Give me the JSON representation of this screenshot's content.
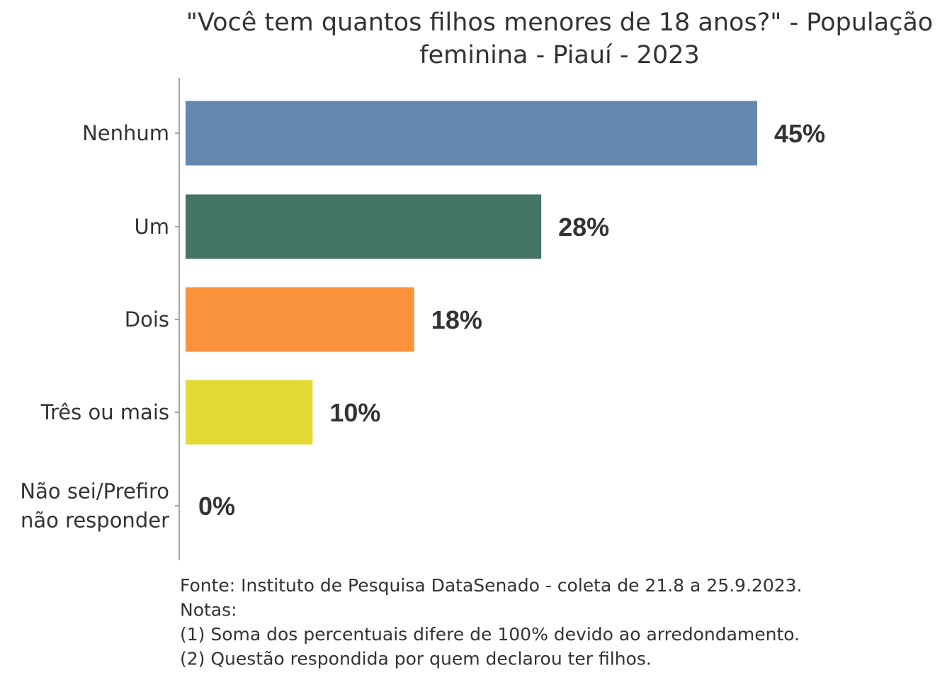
{
  "chart_data": {
    "type": "bar",
    "orientation": "horizontal",
    "title_lines": [
      "\"Você tem quantos filhos menores de 18 anos?\" - População",
      "feminina - Piauí - 2023"
    ],
    "categories": [
      [
        "Nenhum"
      ],
      [
        "Um"
      ],
      [
        "Dois"
      ],
      [
        "Três ou mais"
      ],
      [
        "Não sei/Prefiro",
        "não responder"
      ]
    ],
    "values": [
      45,
      28,
      18,
      10,
      0
    ],
    "value_labels": [
      "45%",
      "28%",
      "18%",
      "10%",
      "0%"
    ],
    "colors": [
      "#6588b0",
      "#447563",
      "#fb923c",
      "#e5d935",
      "#999999"
    ],
    "xlabel": "",
    "ylabel": "",
    "xlim": [
      0,
      50
    ],
    "grid": false,
    "legend": "none"
  },
  "footer": [
    "Fonte: Instituto de Pesquisa DataSenado - coleta de 21.8 a 25.9.2023.",
    "Notas:",
    "(1) Soma dos percentuais difere de 100% devido ao arredondamento.",
    "(2) Questão respondida por quem declarou ter filhos."
  ]
}
